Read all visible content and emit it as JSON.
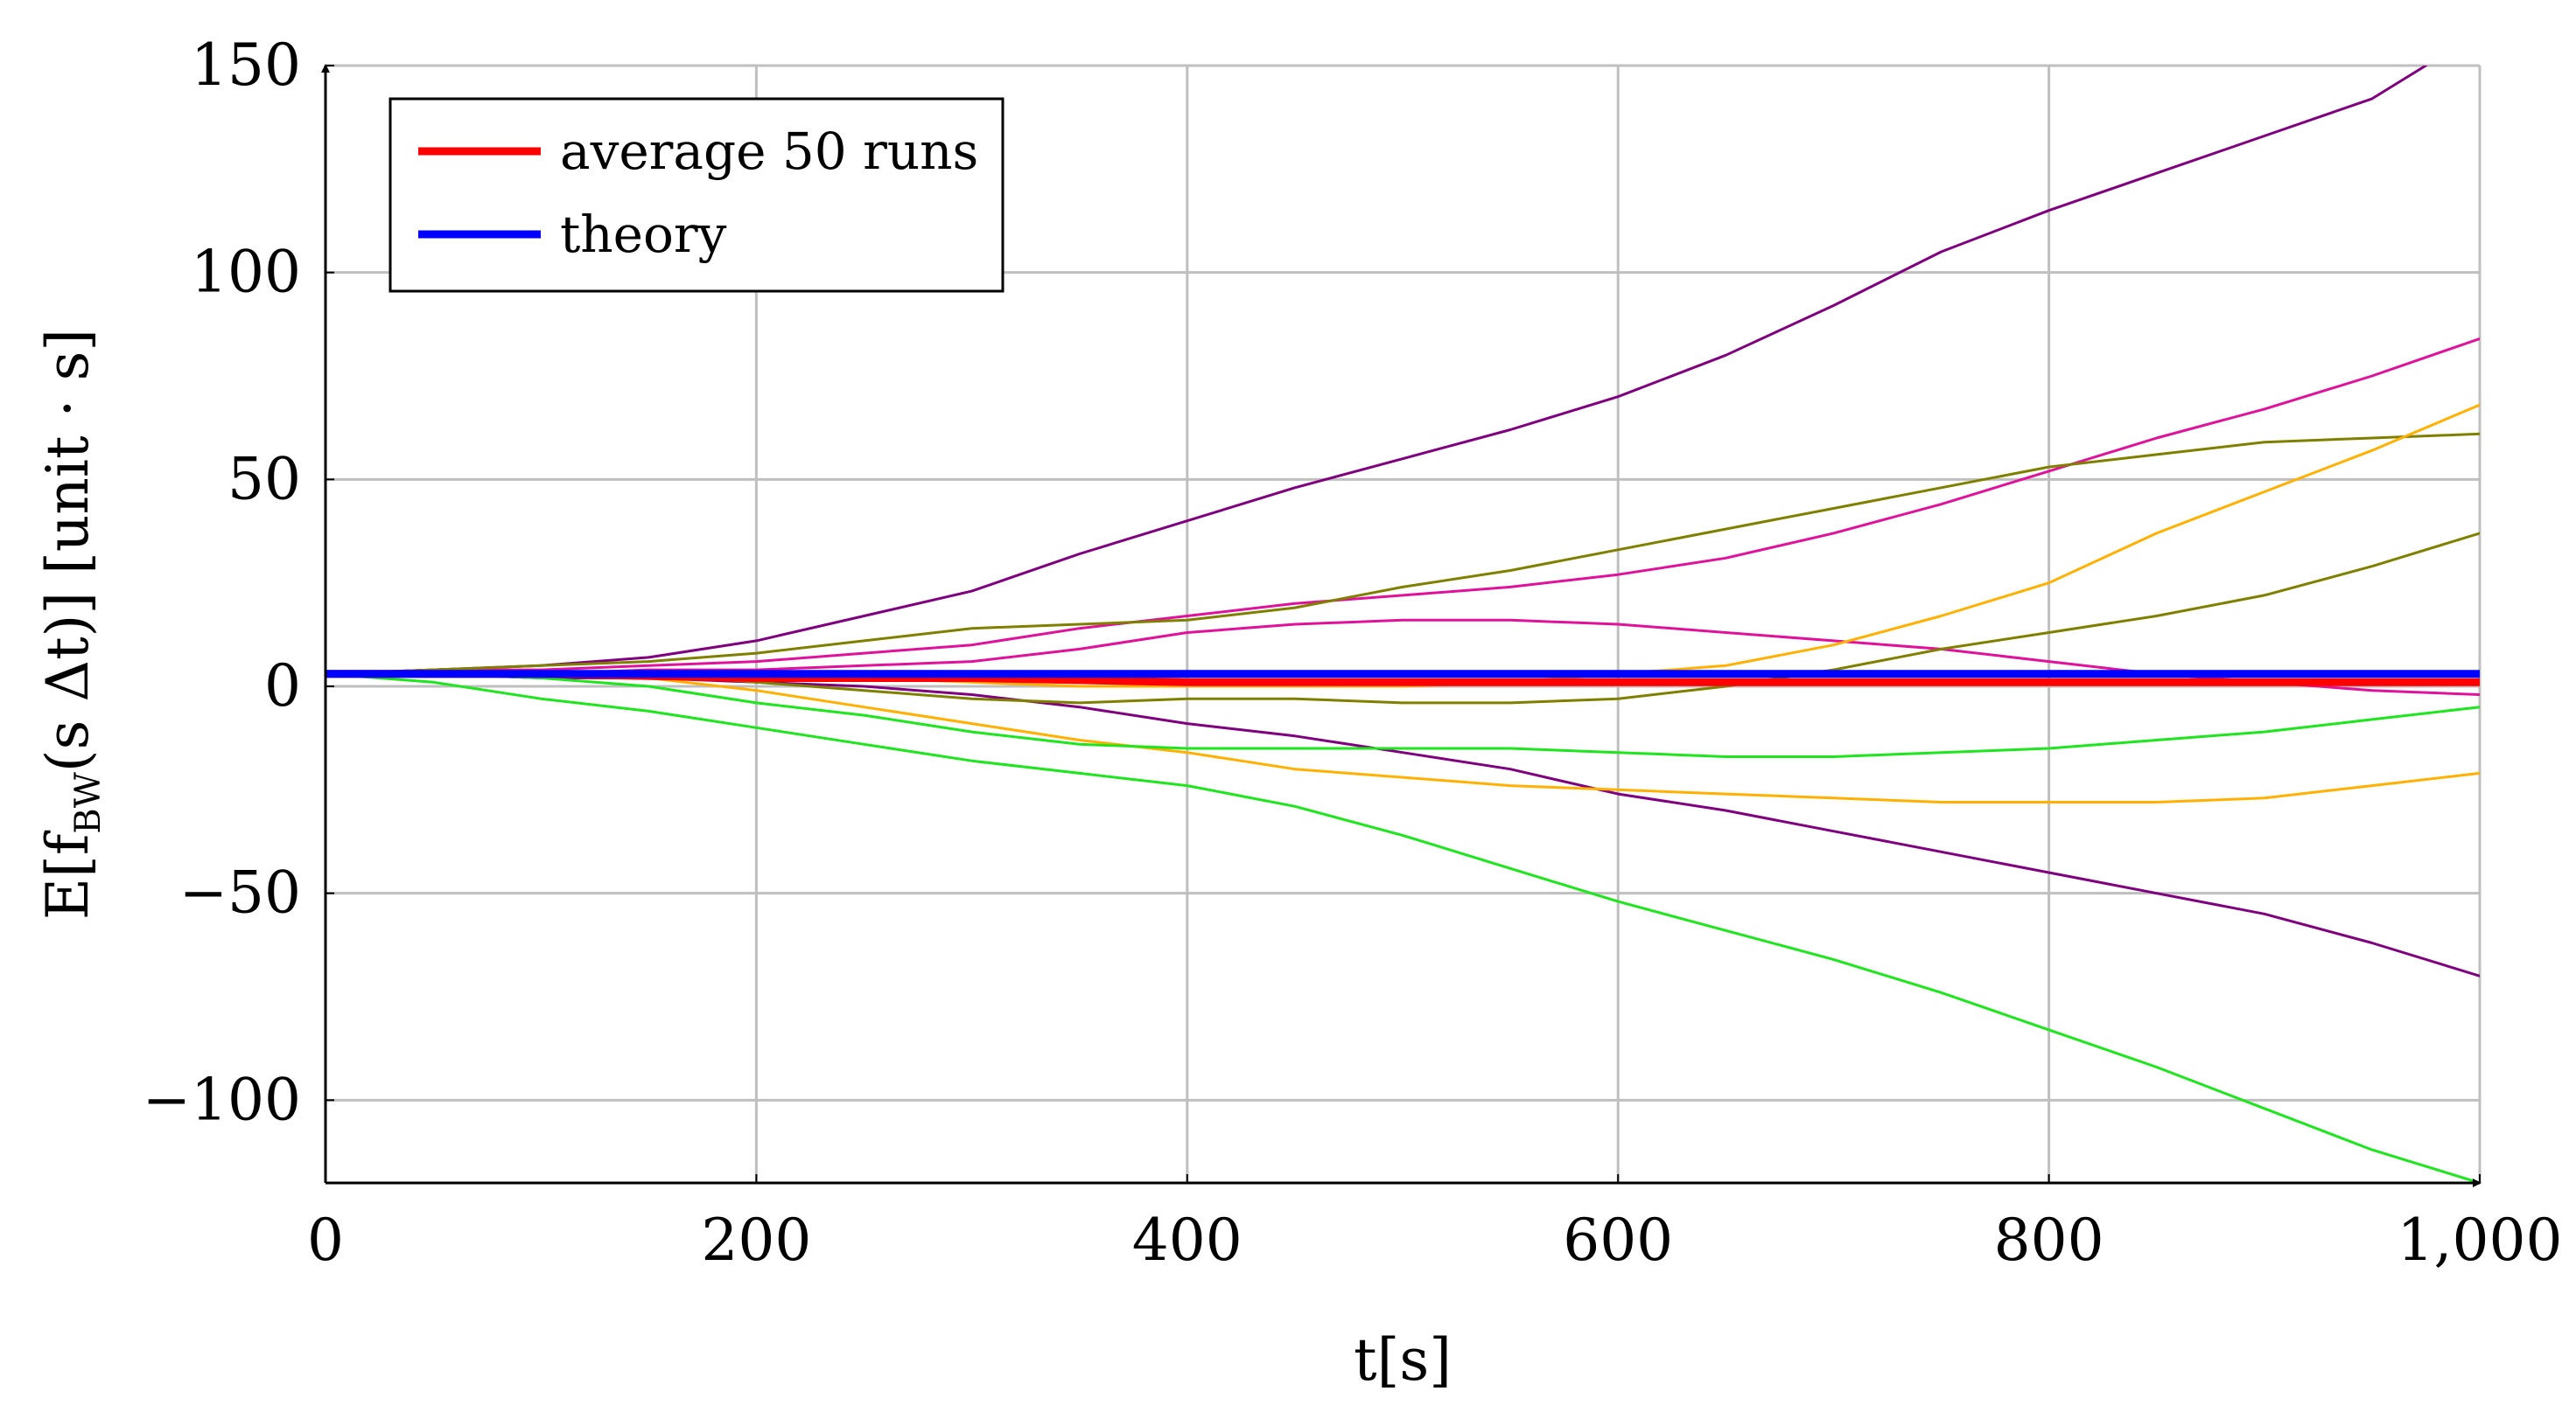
{
  "chart_data": {
    "type": "line",
    "title": "",
    "xlabel": "t[s]",
    "ylabel_parts": {
      "prefix": "E[f",
      "subscript": "BW",
      "middle": "(s Δt)]",
      "unit": "[unit · s]"
    },
    "xlim": [
      0,
      1000
    ],
    "ylim": [
      -120,
      150
    ],
    "grid": true,
    "x_ticks": [
      {
        "value": 0,
        "label": "0"
      },
      {
        "value": 200,
        "label": "200"
      },
      {
        "value": 400,
        "label": "400"
      },
      {
        "value": 600,
        "label": "600"
      },
      {
        "value": 800,
        "label": "800"
      },
      {
        "value": 1000,
        "label": "1,000"
      }
    ],
    "y_ticks": [
      {
        "value": 150,
        "label": "150"
      },
      {
        "value": 100,
        "label": "100"
      },
      {
        "value": 50,
        "label": "50"
      },
      {
        "value": 0,
        "label": "0"
      },
      {
        "value": -50,
        "label": "−50"
      },
      {
        "value": -100,
        "label": "−100"
      }
    ],
    "legend": {
      "position": "top-left",
      "entries": [
        {
          "label": "average 50 runs",
          "color": "#ff0000"
        },
        {
          "label": "theory",
          "color": "#0000ff"
        }
      ]
    },
    "series": [
      {
        "name": "sample-run-purple-up",
        "color": "#800080",
        "width": 3,
        "x": [
          0,
          50,
          100,
          150,
          200,
          250,
          300,
          350,
          400,
          450,
          500,
          550,
          600,
          650,
          700,
          750,
          800,
          850,
          900,
          950,
          975
        ],
        "y": [
          3,
          4,
          5,
          7,
          11,
          17,
          23,
          32,
          40,
          48,
          55,
          62,
          70,
          80,
          92,
          105,
          115,
          124,
          133,
          142,
          150
        ]
      },
      {
        "name": "sample-run-purple-down",
        "color": "#800080",
        "width": 3,
        "x": [
          0,
          50,
          100,
          150,
          200,
          250,
          300,
          350,
          400,
          450,
          500,
          550,
          600,
          650,
          700,
          750,
          800,
          850,
          900,
          950,
          1000
        ],
        "y": [
          3,
          3,
          2,
          2,
          1,
          0,
          -2,
          -5,
          -9,
          -12,
          -16,
          -20,
          -26,
          -30,
          -35,
          -40,
          -45,
          -50,
          -55,
          -62,
          -70
        ]
      },
      {
        "name": "sample-run-magenta-up",
        "color": "#e0129c",
        "width": 3,
        "x": [
          0,
          50,
          100,
          150,
          200,
          250,
          300,
          350,
          400,
          450,
          500,
          550,
          600,
          650,
          700,
          750,
          800,
          850,
          900,
          950,
          1000
        ],
        "y": [
          3,
          4,
          4,
          5,
          6,
          8,
          10,
          14,
          17,
          20,
          22,
          24,
          27,
          31,
          37,
          44,
          52,
          60,
          67,
          75,
          84
        ]
      },
      {
        "name": "sample-run-magenta-mid",
        "color": "#e0129c",
        "width": 3,
        "x": [
          0,
          50,
          100,
          150,
          200,
          250,
          300,
          350,
          400,
          450,
          500,
          550,
          600,
          650,
          700,
          750,
          800,
          850,
          900,
          950,
          1000
        ],
        "y": [
          3,
          3,
          3,
          4,
          4,
          5,
          6,
          9,
          13,
          15,
          16,
          16,
          15,
          13,
          11,
          9,
          6,
          3,
          1,
          -1,
          -2
        ]
      },
      {
        "name": "sample-run-olive-up",
        "color": "#808000",
        "width": 3,
        "x": [
          0,
          50,
          100,
          150,
          200,
          250,
          300,
          350,
          400,
          450,
          500,
          550,
          600,
          650,
          700,
          750,
          800,
          850,
          900,
          950,
          1000
        ],
        "y": [
          3,
          4,
          5,
          6,
          8,
          11,
          14,
          15,
          16,
          19,
          24,
          28,
          33,
          38,
          43,
          48,
          53,
          56,
          59,
          60,
          61
        ]
      },
      {
        "name": "sample-run-olive-flat",
        "color": "#808000",
        "width": 3,
        "x": [
          0,
          50,
          100,
          150,
          200,
          250,
          300,
          350,
          400,
          450,
          500,
          550,
          600,
          650,
          700,
          750,
          800,
          850,
          900,
          950,
          1000
        ],
        "y": [
          3,
          3,
          3,
          3,
          1,
          -1,
          -3,
          -4,
          -3,
          -3,
          -4,
          -4,
          -3,
          0,
          4,
          9,
          13,
          17,
          22,
          29,
          37
        ]
      },
      {
        "name": "sample-run-orange-up",
        "color": "#ffb000",
        "width": 3,
        "x": [
          0,
          50,
          100,
          150,
          200,
          250,
          300,
          350,
          400,
          450,
          500,
          550,
          600,
          650,
          700,
          750,
          800,
          850,
          900,
          950,
          1000
        ],
        "y": [
          3,
          3,
          3,
          3,
          3,
          2,
          1,
          0,
          0,
          0,
          0,
          1,
          3,
          5,
          10,
          17,
          25,
          37,
          47,
          57,
          68
        ]
      },
      {
        "name": "sample-run-orange-down",
        "color": "#ffb000",
        "width": 3,
        "x": [
          0,
          50,
          100,
          150,
          200,
          250,
          300,
          350,
          400,
          450,
          500,
          550,
          600,
          650,
          700,
          750,
          800,
          850,
          900,
          950,
          1000
        ],
        "y": [
          3,
          3,
          3,
          2,
          -1,
          -5,
          -9,
          -13,
          -16,
          -20,
          -22,
          -24,
          -25,
          -26,
          -27,
          -28,
          -28,
          -28,
          -27,
          -24,
          -21
        ]
      },
      {
        "name": "sample-run-green-mid",
        "color": "#1de61d",
        "width": 3,
        "x": [
          0,
          50,
          100,
          150,
          200,
          250,
          300,
          350,
          400,
          450,
          500,
          550,
          600,
          650,
          700,
          750,
          800,
          850,
          900,
          950,
          1000
        ],
        "y": [
          3,
          3,
          2,
          0,
          -4,
          -7,
          -11,
          -14,
          -15,
          -15,
          -15,
          -15,
          -16,
          -17,
          -17,
          -16,
          -15,
          -13,
          -11,
          -8,
          -5
        ]
      },
      {
        "name": "sample-run-green-down",
        "color": "#1de61d",
        "width": 3,
        "x": [
          0,
          50,
          100,
          150,
          200,
          250,
          300,
          350,
          400,
          450,
          500,
          550,
          600,
          650,
          700,
          750,
          800,
          850,
          900,
          950,
          1000
        ],
        "y": [
          3,
          1,
          -3,
          -6,
          -10,
          -14,
          -18,
          -21,
          -24,
          -29,
          -36,
          -44,
          -52,
          -59,
          -66,
          -74,
          -83,
          -92,
          -102,
          -112,
          -120
        ]
      },
      {
        "name": "average 50 runs",
        "color": "#ff0000",
        "width": 9,
        "x": [
          0,
          100,
          200,
          300,
          400,
          500,
          600,
          700,
          800,
          900,
          1000
        ],
        "y": [
          3,
          3,
          2,
          2,
          1,
          1,
          1,
          1,
          1,
          1,
          1
        ]
      },
      {
        "name": "theory",
        "color": "#0000ff",
        "width": 9,
        "x": [
          0,
          1000
        ],
        "y": [
          3,
          3
        ]
      }
    ]
  }
}
